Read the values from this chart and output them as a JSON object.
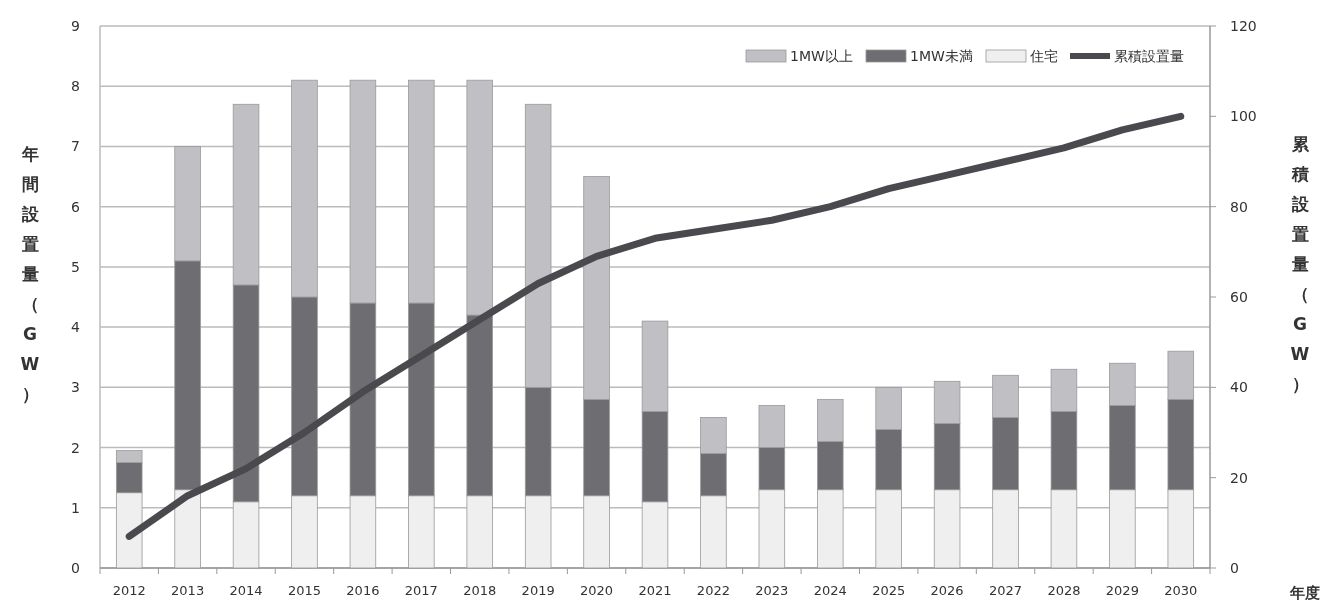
{
  "chart_data": {
    "type": "bar",
    "stacked": true,
    "categories": [
      "2012",
      "2013",
      "2014",
      "2015",
      "2016",
      "2017",
      "2018",
      "2019",
      "2020",
      "2021",
      "2022",
      "2023",
      "2024",
      "2025",
      "2026",
      "2027",
      "2028",
      "2029",
      "2030"
    ],
    "series": [
      {
        "name": "住宅",
        "color": "#efefef",
        "values": [
          1.25,
          1.3,
          1.1,
          1.2,
          1.2,
          1.2,
          1.2,
          1.2,
          1.2,
          1.1,
          1.2,
          1.3,
          1.3,
          1.3,
          1.3,
          1.3,
          1.3,
          1.3,
          1.3
        ]
      },
      {
        "name": "1MW未満",
        "color": "#6d6d72",
        "values": [
          0.5,
          3.8,
          3.6,
          3.3,
          3.2,
          3.2,
          3.0,
          1.8,
          1.6,
          1.5,
          0.7,
          0.7,
          0.8,
          1.0,
          1.1,
          1.2,
          1.3,
          1.4,
          1.5
        ]
      },
      {
        "name": "1MW以上",
        "color": "#c0c0c4",
        "values": [
          0.2,
          1.9,
          3.0,
          3.6,
          3.7,
          3.7,
          3.9,
          4.7,
          3.7,
          1.5,
          0.6,
          0.7,
          0.7,
          0.7,
          0.7,
          0.7,
          0.7,
          0.7,
          0.8
        ]
      },
      {
        "name": "累積設置量",
        "color": "#4a4a4e",
        "type": "line",
        "axis": "y2",
        "values": [
          7,
          16,
          22,
          30,
          39,
          47,
          55,
          63,
          69,
          73,
          75,
          77,
          80,
          84,
          87,
          90,
          93,
          97,
          100
        ]
      }
    ],
    "ylim": [
      0,
      9
    ],
    "yticks": [
      0,
      1,
      2,
      3,
      4,
      5,
      6,
      7,
      8,
      9
    ],
    "y2lim": [
      0,
      120
    ],
    "y2ticks": [
      0,
      20,
      40,
      60,
      80,
      100,
      120
    ],
    "ylabel": "年間設置量（GW）",
    "y2label": "累積設置量（GW）",
    "xlabel": "年度",
    "legend": "top right",
    "grid": "y"
  }
}
